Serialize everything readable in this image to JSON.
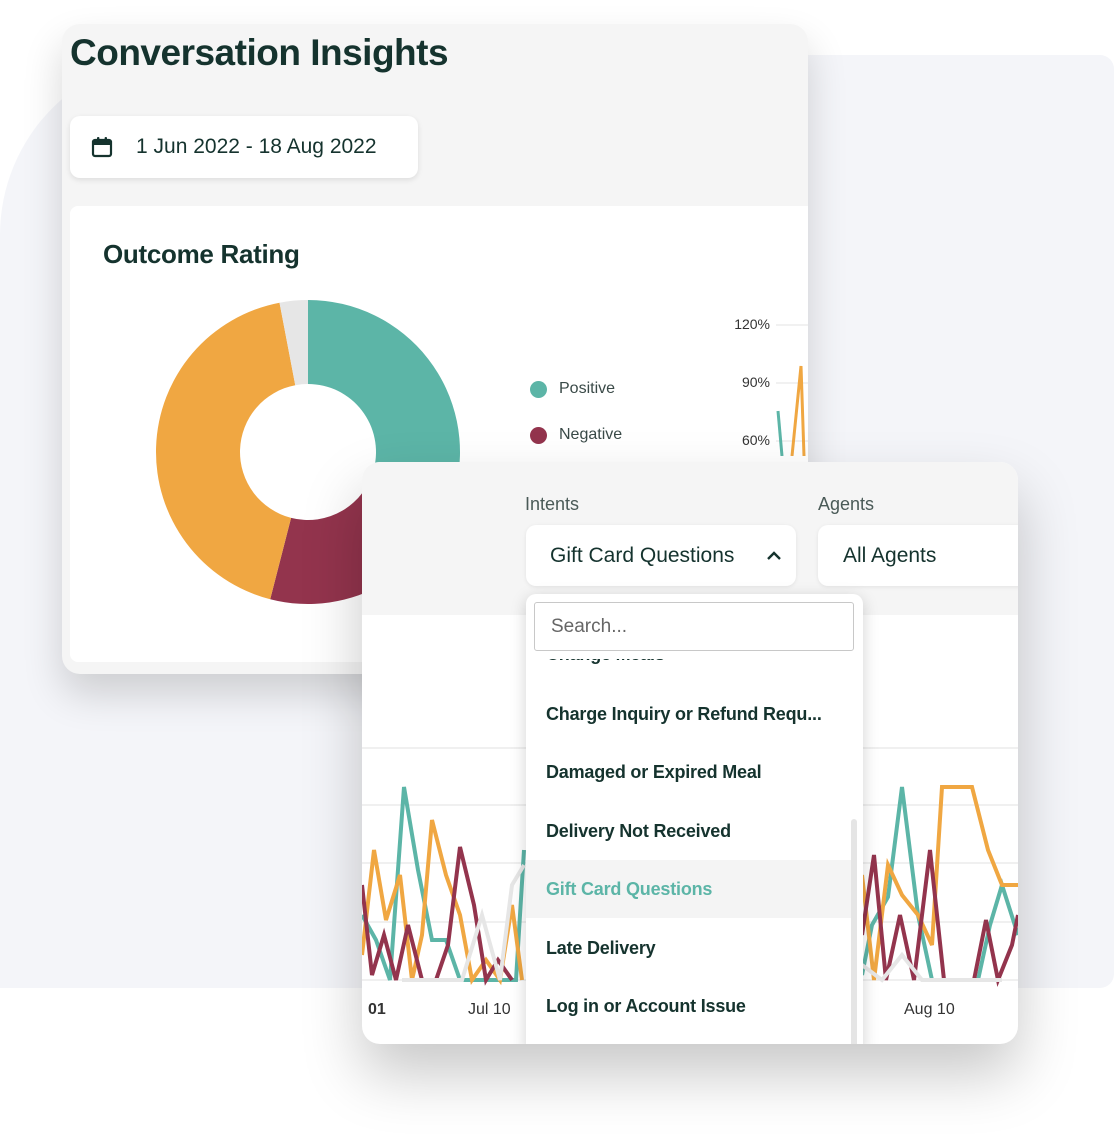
{
  "insights": {
    "title": "Conversation Insights",
    "date_range": "1 Jun 2022 - 18 Aug 2022",
    "calendar_icon": "calendar-icon"
  },
  "outcome": {
    "title": "Outcome Rating",
    "legend": [
      {
        "label": "Positive",
        "color": "#5cb5a7"
      },
      {
        "label": "Negative",
        "color": "#93344d"
      }
    ],
    "y_ticks": [
      "120%",
      "90%",
      "60%"
    ]
  },
  "chart_data": {
    "type": "pie",
    "series": [
      {
        "name": "Positive",
        "value": 29,
        "color": "#5cb5a7"
      },
      {
        "name": "Negative",
        "value": 25,
        "color": "#93344d"
      },
      {
        "name": "",
        "value": 43,
        "color": "#f0a742"
      },
      {
        "name": "",
        "value": 3,
        "color": "#e6e6e6"
      }
    ]
  },
  "filters": {
    "intents_label": "Intents",
    "intents_value": "Gift Card Questions",
    "agents_label": "Agents",
    "agents_value": "All Agents"
  },
  "dropdown": {
    "search_placeholder": "Search...",
    "options": [
      {
        "label": "Change Meals",
        "selected": false
      },
      {
        "label": "Charge Inquiry or Refund Requ...",
        "selected": false
      },
      {
        "label": "Damaged or Expired Meal",
        "selected": false
      },
      {
        "label": "Delivery Not Received",
        "selected": false
      },
      {
        "label": "Gift Card Questions",
        "selected": true
      },
      {
        "label": "Late Delivery",
        "selected": false
      },
      {
        "label": "Log in or Account Issue",
        "selected": false
      }
    ]
  },
  "timeline": {
    "x_ticks": [
      "01",
      "Jul 10",
      "Aug 10"
    ]
  },
  "colors": {
    "teal": "#5cb5a7",
    "maroon": "#93344d",
    "orange": "#f0a742",
    "grey": "#e6e6e6",
    "dark": "#15332e"
  }
}
